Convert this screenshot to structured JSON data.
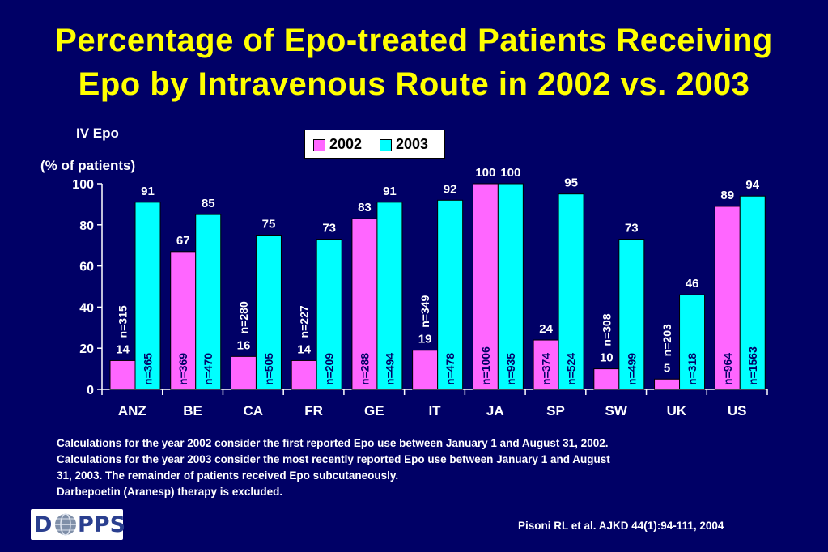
{
  "title": {
    "line1": "Percentage of Epo-treated Patients Receiving",
    "line2": "Epo by Intravenous Route in 2002 vs. 2003"
  },
  "colors": {
    "background": "#000066",
    "title": "#ffff00",
    "series_2002": "#ff66ff",
    "series_2003": "#00ffff"
  },
  "chart_data": {
    "type": "bar",
    "ylabel_line1": "IV Epo",
    "ylabel_line2": "(% of patients)",
    "ylim": [
      0,
      100
    ],
    "yticks": [
      0,
      20,
      40,
      60,
      80,
      100
    ],
    "legend_position": "top-center",
    "categories": [
      "ANZ",
      "BE",
      "CA",
      "FR",
      "GE",
      "IT",
      "JA",
      "SP",
      "SW",
      "UK",
      "US"
    ],
    "series": [
      {
        "name": "2002",
        "color": "#ff66ff",
        "values": [
          14,
          67,
          16,
          14,
          83,
          19,
          100,
          24,
          10,
          5,
          89
        ],
        "n_labels": [
          "n=315",
          "n=369",
          "n=280",
          "n=227",
          "n=288",
          "n=349",
          "n=1006",
          "n=374",
          "n=308",
          "n=203",
          "n=964"
        ]
      },
      {
        "name": "2003",
        "color": "#00ffff",
        "values": [
          91,
          85,
          75,
          73,
          91,
          92,
          100,
          95,
          73,
          46,
          94
        ],
        "n_labels": [
          "n=365",
          "n=470",
          "n=505",
          "n=209",
          "n=494",
          "n=478",
          "n=935",
          "n=524",
          "n=499",
          "n=318",
          "n=1563"
        ]
      }
    ]
  },
  "notes": [
    "Calculations for the year 2002 consider the first reported Epo use between January 1  and August 31, 2002.",
    "Calculations for the year 2003 consider the most recently reported Epo use between January 1  and August",
    "31, 2003. The remainder of patients received Epo subcutaneously.",
    "Darbepoetin (Aranesp) therapy is excluded."
  ],
  "citation": "Pisoni RL et al. AJKD 44(1):94-111, 2004",
  "logo": {
    "text": "DOPPS",
    "left": "D",
    "right": "PPS"
  }
}
